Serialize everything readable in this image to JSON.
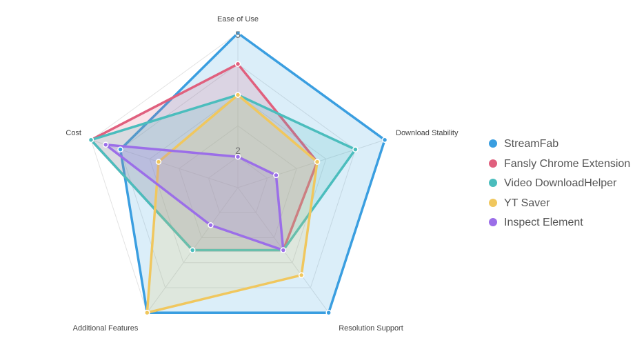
{
  "chart_data": {
    "type": "radar",
    "axes": [
      "Ease of Use",
      "Download Stability",
      "Resolution Support",
      "Additional Features",
      "Cost"
    ],
    "rmax": 5,
    "tick_labels": [
      "2",
      "",
      "",
      "5"
    ],
    "grid": true,
    "legend_position": "right",
    "series": [
      {
        "name": "StreamFab",
        "color": "#3a9ee0",
        "values": [
          5,
          5,
          5,
          5,
          4
        ]
      },
      {
        "name": "Fansly Chrome Extension",
        "color": "#e0607e",
        "values": [
          4,
          2.7,
          2.5,
          2.5,
          5
        ]
      },
      {
        "name": "Video DownloadHelper",
        "color": "#4bbdbd",
        "values": [
          3,
          4,
          2.5,
          2.5,
          5
        ]
      },
      {
        "name": "YT Saver",
        "color": "#f0c75e",
        "values": [
          3,
          2.7,
          3.5,
          5,
          2.7
        ]
      },
      {
        "name": "Inspect Element",
        "color": "#9b6ee8",
        "values": [
          1,
          1.3,
          2.5,
          1.5,
          4.5
        ]
      }
    ]
  }
}
